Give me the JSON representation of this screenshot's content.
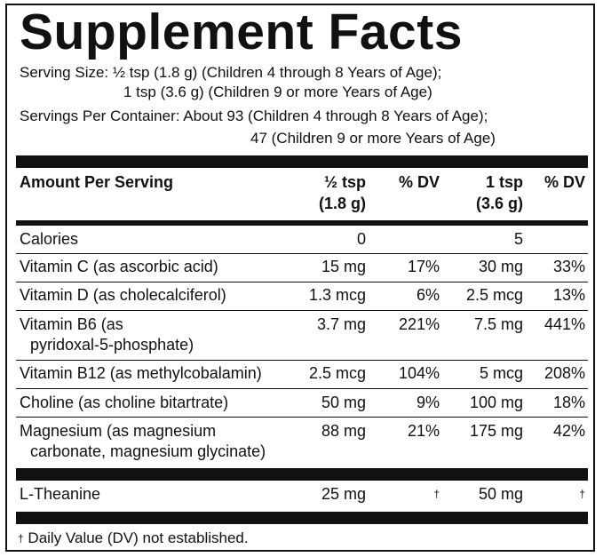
{
  "title": "Supplement Facts",
  "serving": {
    "line1": "Serving Size: ½ tsp (1.8 g) (Children 4 through 8 Years of Age);",
    "line2": "1 tsp (3.6 g) (Children 9 or more Years of Age)",
    "line3": "Servings Per Container: About 93 (Children 4 through 8 Years of Age);",
    "line4": "47 (Children 9 or more Years of Age)"
  },
  "header": {
    "amount": "Amount Per Serving",
    "col1_a": "½ tsp",
    "col1_b": "(1.8 g)",
    "dv1": "% DV",
    "col2_a": "1 tsp",
    "col2_b": "(3.6 g)",
    "dv2": "% DV"
  },
  "rows": [
    {
      "name": "Calories",
      "name2": "",
      "amt1": "0",
      "dv1": "",
      "amt2": "5",
      "dv2": ""
    },
    {
      "name": "Vitamin C (as ascorbic acid)",
      "name2": "",
      "amt1": "15 mg",
      "dv1": "17%",
      "amt2": "30 mg",
      "dv2": "33%"
    },
    {
      "name": "Vitamin D (as cholecalciferol)",
      "name2": "",
      "amt1": "1.3 mcg",
      "dv1": "6%",
      "amt2": "2.5 mcg",
      "dv2": "13%"
    },
    {
      "name": "Vitamin B6 (as",
      "name2": "pyridoxal-5-phosphate)",
      "amt1": "3.7 mg",
      "dv1": "221%",
      "amt2": "7.5 mg",
      "dv2": "441%"
    },
    {
      "name": "Vitamin B12 (as methylcobalamin)",
      "name2": "",
      "amt1": "2.5 mcg",
      "dv1": "104%",
      "amt2": "5 mcg",
      "dv2": "208%"
    },
    {
      "name": "Choline (as choline bitartrate)",
      "name2": "",
      "amt1": "50 mg",
      "dv1": "9%",
      "amt2": "100 mg",
      "dv2": "18%"
    },
    {
      "name": "Magnesium (as magnesium",
      "name2": "carbonate, magnesium glycinate)",
      "amt1": "88 mg",
      "dv1": "21%",
      "amt2": "175 mg",
      "dv2": "42%"
    }
  ],
  "theanine": {
    "name": "L-Theanine",
    "amt1": "25 mg",
    "dv1": "†",
    "amt2": "50 mg",
    "dv2": "†"
  },
  "footnote": {
    "mark": "†",
    "text": " Daily Value (DV) not established."
  }
}
